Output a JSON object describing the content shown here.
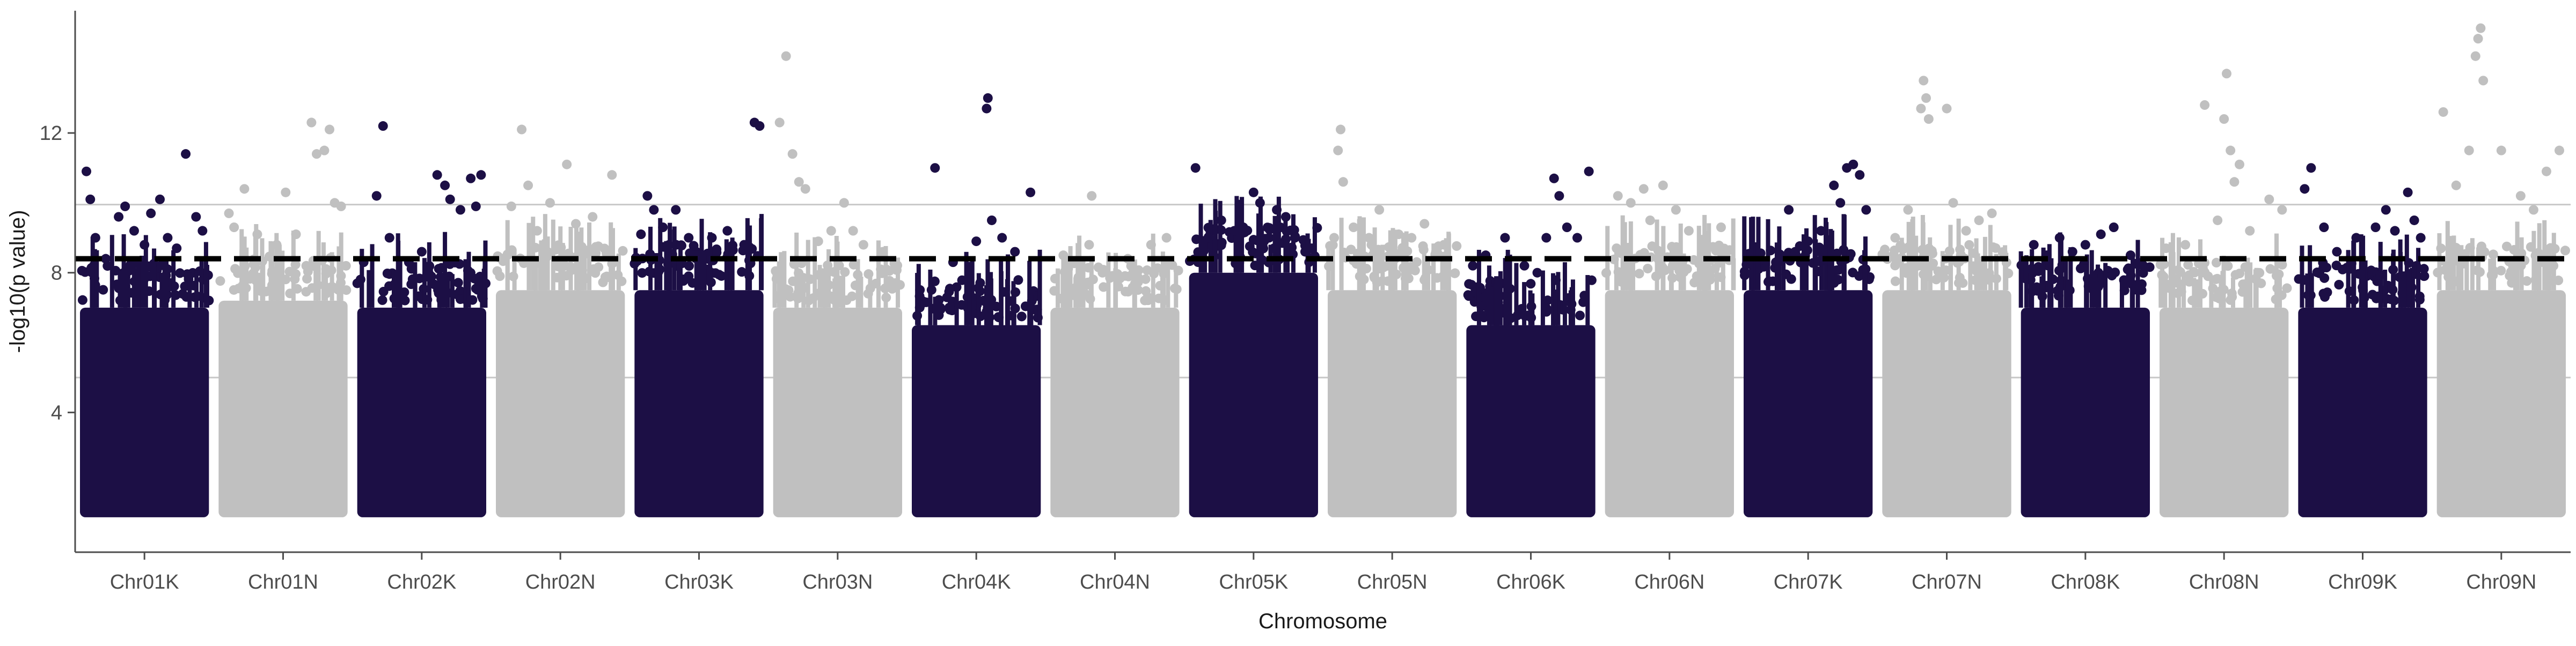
{
  "chart_data": {
    "type": "scatter",
    "subtype": "manhattan",
    "title": "",
    "xlabel": "Chromosome",
    "ylabel": "-log10(p value)",
    "ylim": [
      0,
      15.5
    ],
    "y_ticks": [
      4,
      8,
      12
    ],
    "grid": "horizontal reference lines only",
    "legend": "none",
    "colors": {
      "K": "#1c0f45",
      "N": "#c0c0c0",
      "threshold": "#000000",
      "reference": "#c8c8c8",
      "axis": "#4d4d4d"
    },
    "threshold_line": {
      "y": 8.4,
      "style": "dashed"
    },
    "reference_lines": [
      {
        "y": 9.95,
        "style": "solid"
      },
      {
        "y": 5.0,
        "style": "solid"
      }
    ],
    "point_floor": 1.0,
    "categories": [
      "Chr01K",
      "Chr01N",
      "Chr02K",
      "Chr02N",
      "Chr03K",
      "Chr03N",
      "Chr04K",
      "Chr04N",
      "Chr05K",
      "Chr05N",
      "Chr06K",
      "Chr06N",
      "Chr07K",
      "Chr07N",
      "Chr08K",
      "Chr08N",
      "Chr09K",
      "Chr09N"
    ],
    "series": [
      {
        "category": "Chr01K",
        "group": "K",
        "body_max": 7.0,
        "peaks": [
          [
            0.05,
            10.9
          ],
          [
            0.08,
            10.1
          ],
          [
            0.12,
            9.0
          ],
          [
            0.2,
            8.4
          ],
          [
            0.3,
            9.6
          ],
          [
            0.35,
            9.9
          ],
          [
            0.42,
            9.2
          ],
          [
            0.5,
            8.8
          ],
          [
            0.55,
            9.7
          ],
          [
            0.62,
            10.1
          ],
          [
            0.68,
            9.0
          ],
          [
            0.75,
            8.7
          ],
          [
            0.82,
            11.4
          ],
          [
            0.9,
            9.6
          ],
          [
            0.95,
            9.2
          ]
        ]
      },
      {
        "category": "Chr01N",
        "group": "N",
        "body_max": 7.2,
        "peaks": [
          [
            0.08,
            9.7
          ],
          [
            0.12,
            9.3
          ],
          [
            0.2,
            10.4
          ],
          [
            0.3,
            9.1
          ],
          [
            0.45,
            8.8
          ],
          [
            0.52,
            10.3
          ],
          [
            0.6,
            9.1
          ],
          [
            0.72,
            12.3
          ],
          [
            0.76,
            11.4
          ],
          [
            0.82,
            11.5
          ],
          [
            0.86,
            12.1
          ],
          [
            0.9,
            10.0
          ],
          [
            0.95,
            9.9
          ]
        ]
      },
      {
        "category": "Chr02K",
        "group": "K",
        "body_max": 7.0,
        "peaks": [
          [
            0.05,
            8.3
          ],
          [
            0.15,
            10.2
          ],
          [
            0.2,
            12.2
          ],
          [
            0.25,
            9.0
          ],
          [
            0.4,
            8.3
          ],
          [
            0.5,
            8.6
          ],
          [
            0.62,
            10.8
          ],
          [
            0.68,
            10.5
          ],
          [
            0.72,
            10.1
          ],
          [
            0.8,
            9.8
          ],
          [
            0.88,
            10.7
          ],
          [
            0.92,
            9.9
          ],
          [
            0.96,
            10.8
          ]
        ]
      },
      {
        "category": "Chr02N",
        "group": "N",
        "body_max": 7.5,
        "peaks": [
          [
            0.12,
            9.9
          ],
          [
            0.2,
            12.1
          ],
          [
            0.25,
            10.5
          ],
          [
            0.32,
            9.2
          ],
          [
            0.42,
            10.0
          ],
          [
            0.55,
            11.1
          ],
          [
            0.62,
            9.4
          ],
          [
            0.75,
            9.6
          ],
          [
            0.9,
            10.8
          ]
        ]
      },
      {
        "category": "Chr03K",
        "group": "K",
        "body_max": 7.5,
        "peaks": [
          [
            0.05,
            9.1
          ],
          [
            0.1,
            10.2
          ],
          [
            0.15,
            9.8
          ],
          [
            0.22,
            9.3
          ],
          [
            0.32,
            9.8
          ],
          [
            0.42,
            9.0
          ],
          [
            0.52,
            8.5
          ],
          [
            0.6,
            9.0
          ],
          [
            0.72,
            9.2
          ],
          [
            0.85,
            8.8
          ],
          [
            0.93,
            12.3
          ],
          [
            0.97,
            12.2
          ]
        ]
      },
      {
        "category": "Chr03N",
        "group": "N",
        "body_max": 7.0,
        "peaks": [
          [
            0.05,
            12.3
          ],
          [
            0.1,
            14.2
          ],
          [
            0.15,
            11.4
          ],
          [
            0.2,
            10.6
          ],
          [
            0.25,
            10.4
          ],
          [
            0.35,
            8.9
          ],
          [
            0.45,
            9.2
          ],
          [
            0.55,
            10.0
          ],
          [
            0.62,
            9.2
          ],
          [
            0.7,
            8.8
          ],
          [
            0.85,
            8.6
          ]
        ]
      },
      {
        "category": "Chr04K",
        "group": "K",
        "body_max": 6.5,
        "peaks": [
          [
            0.18,
            11.0
          ],
          [
            0.32,
            8.3
          ],
          [
            0.5,
            8.9
          ],
          [
            0.58,
            12.7
          ],
          [
            0.59,
            13.0
          ],
          [
            0.62,
            9.5
          ],
          [
            0.7,
            9.0
          ],
          [
            0.8,
            8.6
          ],
          [
            0.92,
            10.3
          ]
        ]
      },
      {
        "category": "Chr04N",
        "group": "N",
        "body_max": 7.0,
        "peaks": [
          [
            0.1,
            8.5
          ],
          [
            0.3,
            8.8
          ],
          [
            0.32,
            10.2
          ],
          [
            0.6,
            8.4
          ],
          [
            0.78,
            8.8
          ],
          [
            0.9,
            9.0
          ]
        ]
      },
      {
        "category": "Chr05K",
        "group": "K",
        "body_max": 8.0,
        "peaks": [
          [
            0.05,
            11.0
          ],
          [
            0.15,
            9.0
          ],
          [
            0.25,
            9.5
          ],
          [
            0.35,
            9.2
          ],
          [
            0.42,
            9.3
          ],
          [
            0.5,
            10.3
          ],
          [
            0.55,
            10.0
          ],
          [
            0.62,
            9.0
          ],
          [
            0.68,
            9.8
          ],
          [
            0.75,
            9.6
          ],
          [
            0.82,
            9.0
          ],
          [
            0.9,
            8.6
          ],
          [
            0.95,
            8.7
          ]
        ]
      },
      {
        "category": "Chr05N",
        "group": "N",
        "body_max": 7.5,
        "peaks": [
          [
            0.05,
            9.0
          ],
          [
            0.08,
            11.5
          ],
          [
            0.1,
            12.1
          ],
          [
            0.12,
            10.6
          ],
          [
            0.2,
            9.3
          ],
          [
            0.32,
            9.0
          ],
          [
            0.4,
            9.8
          ],
          [
            0.55,
            9.1
          ],
          [
            0.65,
            9.0
          ],
          [
            0.75,
            9.4
          ],
          [
            0.9,
            8.8
          ]
        ]
      },
      {
        "category": "Chr06K",
        "group": "K",
        "body_max": 6.5,
        "peaks": [
          [
            0.05,
            8.2
          ],
          [
            0.15,
            8.5
          ],
          [
            0.3,
            9.0
          ],
          [
            0.45,
            8.2
          ],
          [
            0.55,
            8.0
          ],
          [
            0.62,
            9.0
          ],
          [
            0.68,
            10.7
          ],
          [
            0.72,
            10.2
          ],
          [
            0.78,
            9.3
          ],
          [
            0.86,
            9.0
          ],
          [
            0.95,
            10.9
          ]
        ]
      },
      {
        "category": "Chr06N",
        "group": "N",
        "body_max": 7.5,
        "peaks": [
          [
            0.1,
            10.2
          ],
          [
            0.2,
            10.0
          ],
          [
            0.3,
            10.4
          ],
          [
            0.35,
            9.5
          ],
          [
            0.45,
            10.5
          ],
          [
            0.55,
            9.8
          ],
          [
            0.65,
            9.2
          ],
          [
            0.75,
            8.6
          ],
          [
            0.9,
            9.3
          ]
        ]
      },
      {
        "category": "Chr07K",
        "group": "K",
        "body_max": 7.5,
        "peaks": [
          [
            0.25,
            8.3
          ],
          [
            0.35,
            9.8
          ],
          [
            0.4,
            8.6
          ],
          [
            0.5,
            8.9
          ],
          [
            0.6,
            9.2
          ],
          [
            0.7,
            10.5
          ],
          [
            0.75,
            10.0
          ],
          [
            0.8,
            11.0
          ],
          [
            0.85,
            11.1
          ],
          [
            0.9,
            10.8
          ],
          [
            0.95,
            9.8
          ]
        ]
      },
      {
        "category": "Chr07N",
        "group": "N",
        "body_max": 7.5,
        "peaks": [
          [
            0.1,
            9.0
          ],
          [
            0.2,
            9.8
          ],
          [
            0.3,
            12.7
          ],
          [
            0.32,
            13.5
          ],
          [
            0.34,
            13.0
          ],
          [
            0.36,
            12.4
          ],
          [
            0.5,
            12.7
          ],
          [
            0.55,
            10.0
          ],
          [
            0.65,
            9.2
          ],
          [
            0.75,
            9.5
          ],
          [
            0.85,
            9.7
          ]
        ]
      },
      {
        "category": "Chr08K",
        "group": "K",
        "body_max": 7.0,
        "peaks": [
          [
            0.1,
            8.8
          ],
          [
            0.2,
            8.5
          ],
          [
            0.3,
            9.0
          ],
          [
            0.4,
            8.6
          ],
          [
            0.5,
            8.8
          ],
          [
            0.62,
            9.1
          ],
          [
            0.72,
            9.3
          ],
          [
            0.85,
            8.5
          ],
          [
            0.95,
            8.2
          ]
        ]
      },
      {
        "category": "Chr08N",
        "group": "N",
        "body_max": 7.0,
        "peaks": [
          [
            0.05,
            8.7
          ],
          [
            0.2,
            8.8
          ],
          [
            0.35,
            12.8
          ],
          [
            0.45,
            9.5
          ],
          [
            0.5,
            12.4
          ],
          [
            0.52,
            13.7
          ],
          [
            0.55,
            11.5
          ],
          [
            0.58,
            10.6
          ],
          [
            0.62,
            11.1
          ],
          [
            0.7,
            9.2
          ],
          [
            0.85,
            10.1
          ],
          [
            0.95,
            9.8
          ]
        ]
      },
      {
        "category": "Chr09K",
        "group": "K",
        "body_max": 7.0,
        "peaks": [
          [
            0.05,
            10.4
          ],
          [
            0.1,
            11.0
          ],
          [
            0.2,
            9.3
          ],
          [
            0.3,
            8.6
          ],
          [
            0.45,
            9.0
          ],
          [
            0.6,
            9.3
          ],
          [
            0.68,
            9.8
          ],
          [
            0.75,
            9.2
          ],
          [
            0.85,
            10.3
          ],
          [
            0.9,
            9.5
          ],
          [
            0.95,
            9.0
          ]
        ]
      },
      {
        "category": "Chr09N",
        "group": "N",
        "body_max": 7.5,
        "peaks": [
          [
            0.05,
            12.6
          ],
          [
            0.15,
            10.5
          ],
          [
            0.25,
            11.5
          ],
          [
            0.3,
            14.2
          ],
          [
            0.32,
            14.7
          ],
          [
            0.34,
            15.0
          ],
          [
            0.36,
            13.5
          ],
          [
            0.5,
            11.5
          ],
          [
            0.65,
            10.2
          ],
          [
            0.75,
            9.8
          ],
          [
            0.85,
            10.9
          ],
          [
            0.95,
            11.5
          ]
        ]
      }
    ]
  }
}
